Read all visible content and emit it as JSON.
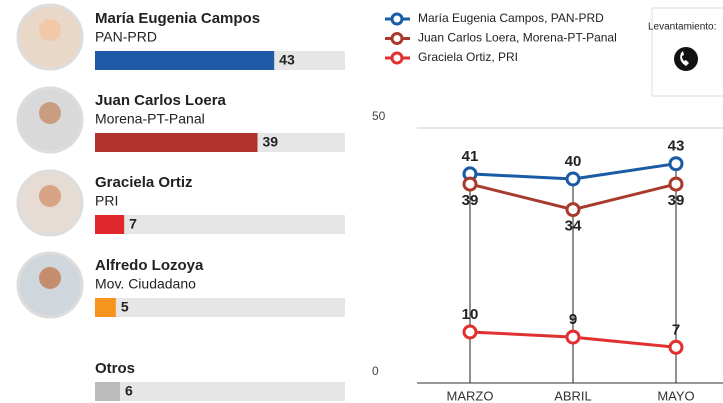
{
  "note": "Levantamiento:",
  "chart_data": [
    {
      "type": "hbar",
      "categories": [
        "María Eugenia Campos",
        "Juan Carlos Loera",
        "Graciela Ortiz",
        "Alfredo Lozoya",
        "Otros"
      ],
      "parties": [
        "PAN-PRD",
        "Morena-PT-Panal",
        "PRI",
        "Mov. Ciudadano",
        null
      ],
      "values": [
        43,
        39,
        7,
        5,
        6
      ],
      "colors": [
        "#1f5aa6",
        "#b0322a",
        "#e0282c",
        "#f7941d",
        "#bbbbbb"
      ],
      "xlim": [
        0,
        60
      ]
    },
    {
      "type": "line",
      "categories": [
        "MARZO",
        "ABRIL",
        "MAYO"
      ],
      "series": [
        {
          "name": "María Eugenia Campos, PAN-PRD",
          "color": "#1a5ba6",
          "values": [
            41,
            40,
            43
          ]
        },
        {
          "name": "Juan Carlos Loera, Morena-PT-Panal",
          "color": "#a83a2c",
          "values": [
            39,
            34,
            39
          ]
        },
        {
          "name": "Graciela Ortiz, PRI",
          "color": "#e03030",
          "values": [
            10,
            9,
            7
          ]
        }
      ],
      "ylim": [
        0,
        50
      ],
      "yticks": [
        0,
        50
      ],
      "grid": true
    }
  ]
}
